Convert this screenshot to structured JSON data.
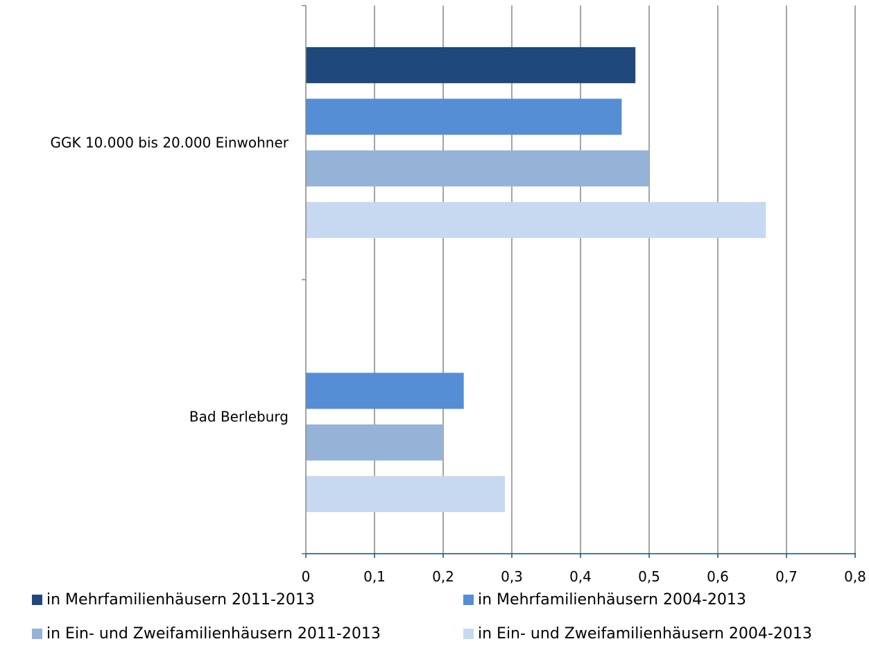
{
  "chart_data": {
    "type": "bar",
    "orientation": "horizontal",
    "categories": [
      "GGK 10.000 bis 20.000 Einwohner",
      "Bad Berleburg"
    ],
    "series": [
      {
        "name": "in Mehrfamilienhäusern 2011-2013",
        "color": "#1F497D",
        "values": [
          0.48,
          null
        ]
      },
      {
        "name": "in Mehrfamilienhäusern 2004-2013",
        "color": "#558ED5",
        "values": [
          0.46,
          0.23
        ]
      },
      {
        "name": "in Ein- und Zweifamilienhäusern 2011-2013",
        "color": "#95B3D7",
        "values": [
          0.5,
          0.2
        ]
      },
      {
        "name": "in Ein- und Zweifamilienhäusern 2004-2013",
        "color": "#C6D9F1",
        "values": [
          0.67,
          0.29
        ]
      }
    ],
    "xlim": [
      0,
      0.8
    ],
    "x_ticks": [
      "0",
      "0,1",
      "0,2",
      "0,3",
      "0,4",
      "0,5",
      "0,6",
      "0,7",
      "0,8"
    ],
    "grid": true,
    "legend": "bottom"
  }
}
